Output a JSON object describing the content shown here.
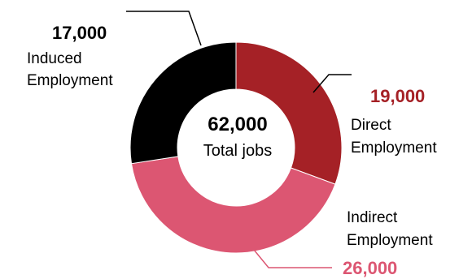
{
  "chart_data": {
    "type": "pie",
    "variant": "donut",
    "center": {
      "value": "62,000",
      "label": "Total jobs"
    },
    "slices": [
      {
        "name": "Direct Employment",
        "value_label": "19,000",
        "value": 19000,
        "color": "#a52126"
      },
      {
        "name": "Indirect Employment",
        "value_label": "26,000",
        "value": 26000,
        "color": "#dc5672"
      },
      {
        "name": "Induced Employment",
        "value_label": "17,000",
        "value": 17000,
        "color": "#000000"
      }
    ],
    "labels": {
      "direct": {
        "value": "19,000",
        "line1": "Direct",
        "line2": "Employment"
      },
      "indirect": {
        "value": "26,000",
        "line1": "Indirect",
        "line2": "Employment"
      },
      "induced": {
        "value": "17,000",
        "line1": "Induced",
        "line2": "Employment"
      }
    }
  }
}
